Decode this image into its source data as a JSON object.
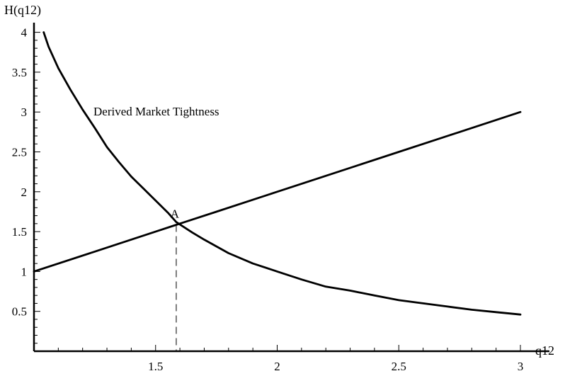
{
  "chart_data": {
    "type": "line",
    "xlabel": "q12",
    "ylabel": "H(q12)",
    "xlim": [
      1,
      3.05
    ],
    "ylim": [
      0,
      4.0
    ],
    "x_ticks": [
      1.5,
      2,
      2.5,
      3
    ],
    "y_ticks": [
      0.5,
      1,
      1.5,
      2,
      2.5,
      3,
      3.5,
      4
    ],
    "grid": false,
    "series": [
      {
        "x": [
          1.0,
          1.25,
          1.5,
          1.585,
          1.75,
          2.0,
          2.25,
          2.5,
          2.75,
          3.0
        ],
        "y": [
          1.0,
          1.25,
          1.5,
          1.585,
          1.75,
          2.0,
          2.25,
          2.5,
          2.75,
          3.0
        ]
      },
      {
        "name": "Derived Market Tightness",
        "x": [
          1.04,
          1.06,
          1.1,
          1.15,
          1.2,
          1.25,
          1.3,
          1.35,
          1.4,
          1.45,
          1.5,
          1.55,
          1.585,
          1.65,
          1.7,
          1.8,
          1.9,
          2.0,
          2.1,
          2.2,
          2.3,
          2.4,
          2.5,
          2.6,
          2.7,
          2.8,
          2.9,
          3.0
        ],
        "y": [
          4.0,
          3.82,
          3.55,
          3.28,
          3.03,
          2.8,
          2.56,
          2.37,
          2.19,
          2.04,
          1.89,
          1.74,
          1.62,
          1.49,
          1.4,
          1.23,
          1.1,
          1.0,
          0.9,
          0.81,
          0.76,
          0.7,
          0.64,
          0.6,
          0.56,
          0.52,
          0.49,
          0.46
        ]
      }
    ],
    "annotations": [
      {
        "text": "A",
        "x": 1.585,
        "y": 1.585,
        "dashed_drop_to_axis": true
      }
    ]
  }
}
